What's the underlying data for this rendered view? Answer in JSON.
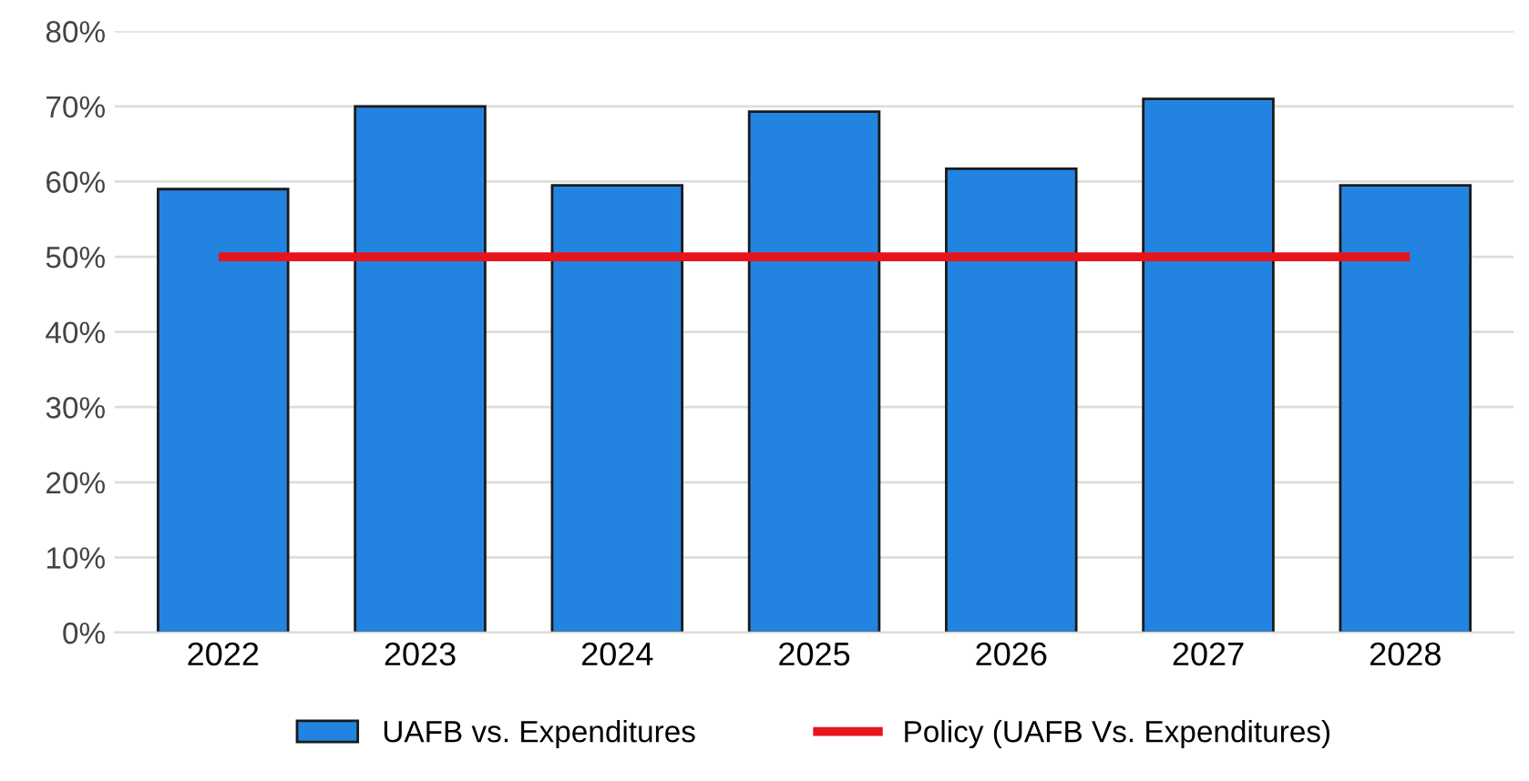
{
  "chart_data": {
    "type": "bar",
    "categories": [
      "2022",
      "2023",
      "2024",
      "2025",
      "2026",
      "2027",
      "2028"
    ],
    "series": [
      {
        "name": "UAFB vs. Expenditures",
        "color": "#2284e0",
        "values": [
          59,
          70,
          59.5,
          69.3,
          61.7,
          71,
          59.5
        ]
      },
      {
        "name": "Policy (UAFB Vs. Expenditures)",
        "type": "line",
        "color": "#e8141c",
        "values": [
          50,
          50,
          50,
          50,
          50,
          50,
          50
        ]
      }
    ],
    "ylim": [
      0,
      80
    ],
    "yticks": [
      {
        "value": 0,
        "label": "0%"
      },
      {
        "value": 10,
        "label": "10%"
      },
      {
        "value": 20,
        "label": "20%"
      },
      {
        "value": 30,
        "label": "30%"
      },
      {
        "value": 40,
        "label": "40%"
      },
      {
        "value": 50,
        "label": "50%"
      },
      {
        "value": 60,
        "label": "60%"
      },
      {
        "value": 70,
        "label": "70%"
      },
      {
        "value": 80,
        "label": "80%"
      }
    ],
    "grid": "y",
    "legend": "bottom"
  }
}
